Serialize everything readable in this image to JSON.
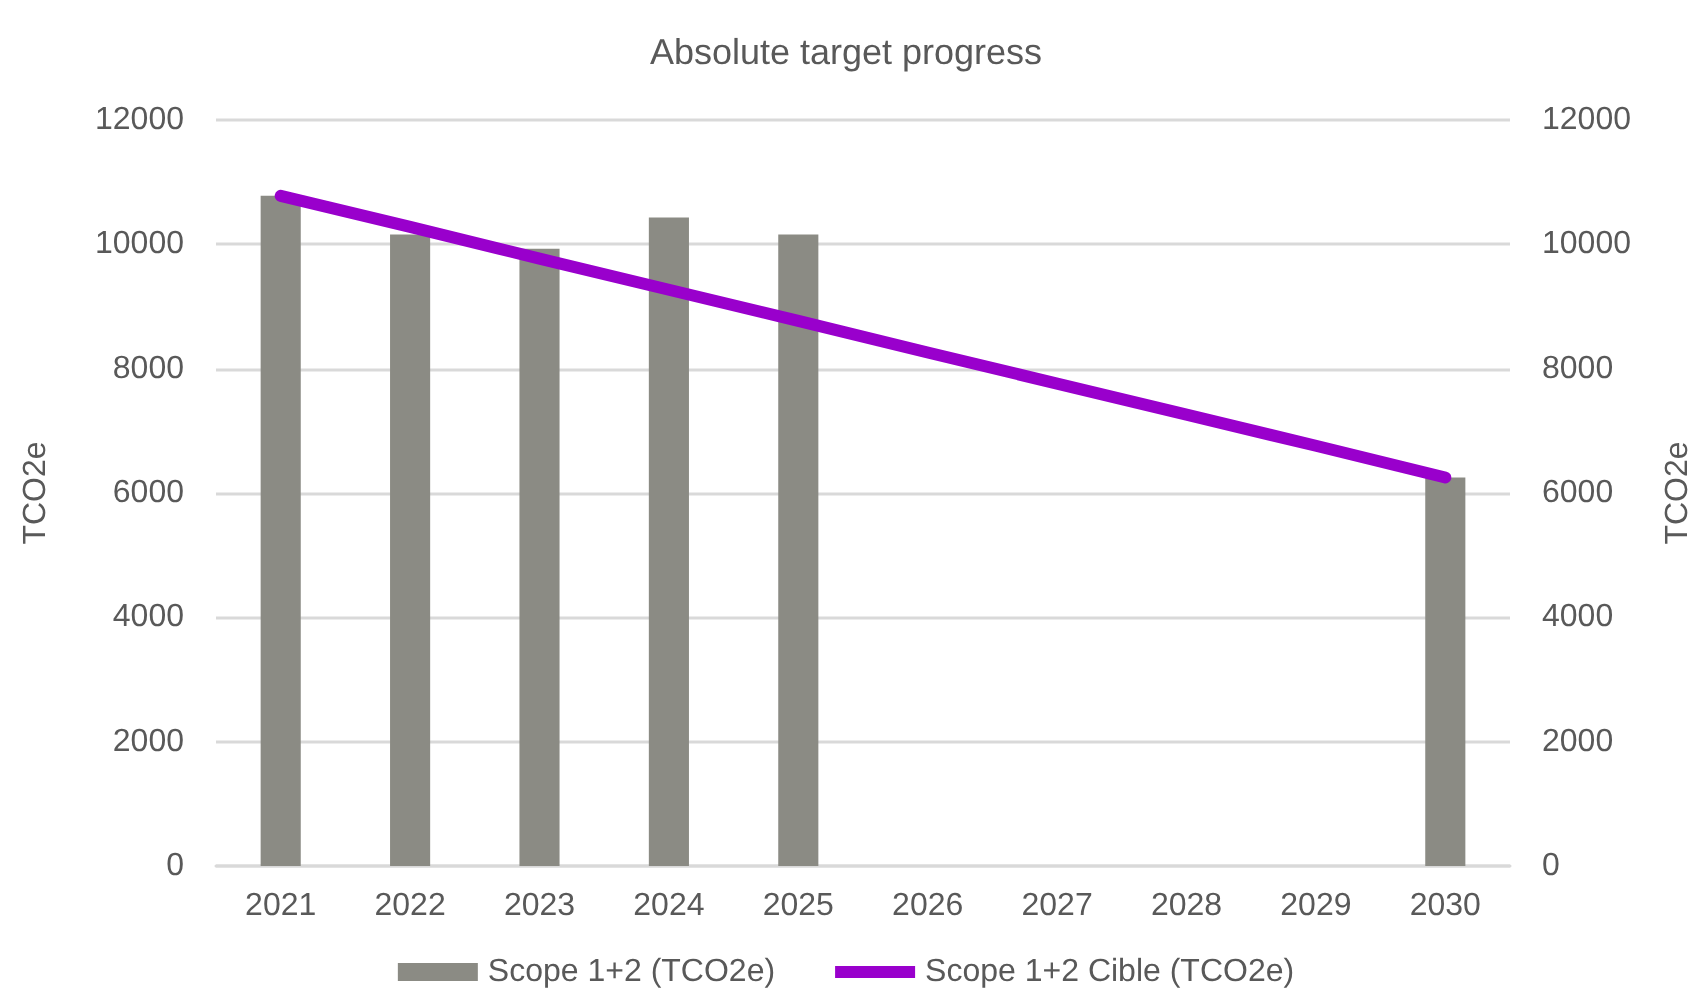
{
  "chart_data": {
    "type": "bar",
    "title": "Absolute target progress",
    "ylabel": "TCO2e",
    "y2label": "TCO2e",
    "categories": [
      "2021",
      "2022",
      "2023",
      "2024",
      "2025",
      "2026",
      "2027",
      "2028",
      "2029",
      "2030"
    ],
    "series": [
      {
        "name": "Scope 1+2 (TCO2e)",
        "color": "#8b8b84",
        "values": [
          10780,
          10160,
          9930,
          10430,
          10160,
          null,
          null,
          null,
          null,
          6250
        ]
      },
      {
        "name": "Scope 1+2 Cible (TCO2e)",
        "type": "line",
        "color": "#9900cc",
        "marker": "none",
        "line_style": "solid",
        "values": [
          10780,
          10280,
          9770,
          9270,
          8770,
          8260,
          7760,
          7260,
          6760,
          6250
        ]
      }
    ],
    "ylim": [
      0,
      12000
    ],
    "yticks": [
      0,
      2000,
      4000,
      6000,
      8000,
      10000,
      12000
    ],
    "y2lim": [
      0,
      12000
    ],
    "y2ticks": [
      0,
      2000,
      4000,
      6000,
      8000,
      10000,
      12000
    ],
    "grid": "y",
    "legend": "bottom"
  }
}
